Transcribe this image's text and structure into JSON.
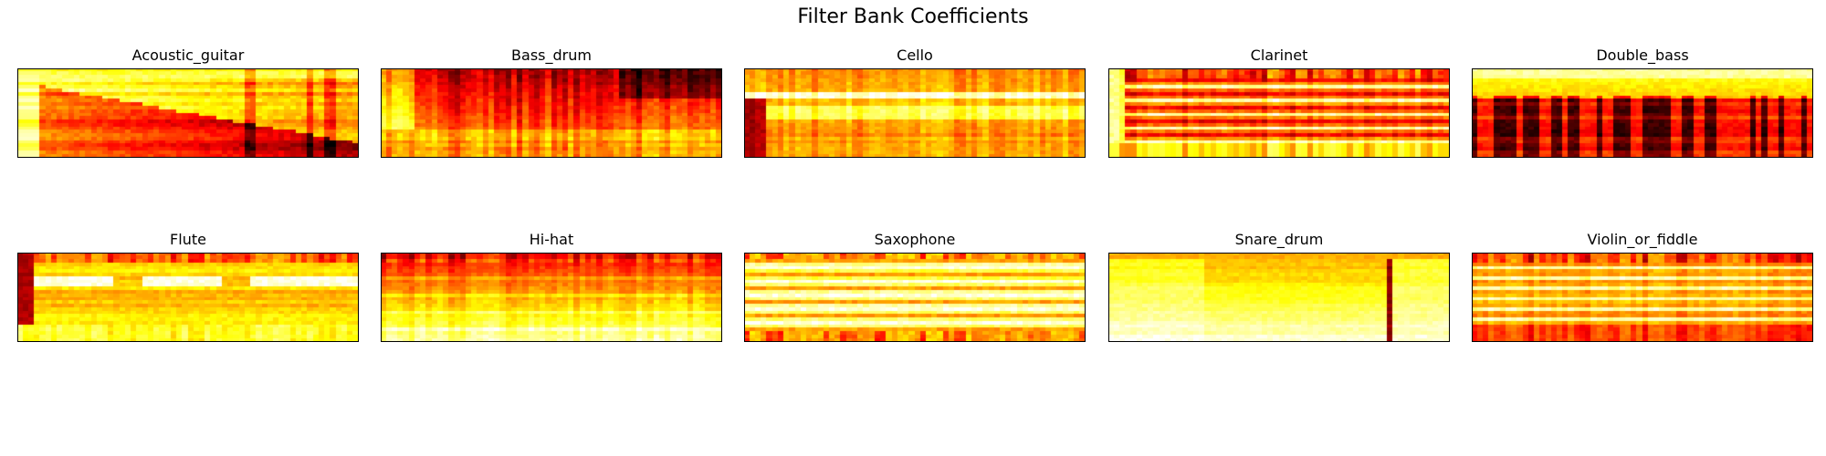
{
  "chart_data": {
    "type": "heatmap",
    "title": "Filter Bank Coefficients",
    "colormap": "hot",
    "xlabel": "",
    "ylabel": "",
    "axes_ticks": "none",
    "grid": false,
    "layout": {
      "rows": 2,
      "cols": 5
    },
    "panels": [
      {
        "title": "Acoustic_guitar",
        "pattern": "decay_wedge",
        "mean_intensity": 0.55
      },
      {
        "title": "Bass_drum",
        "pattern": "dark_top_warm_left",
        "mean_intensity": 0.4
      },
      {
        "title": "Cello",
        "pattern": "bright_band_upper",
        "mean_intensity": 0.55
      },
      {
        "title": "Clarinet",
        "pattern": "harmonic_stripes",
        "mean_intensity": 0.5
      },
      {
        "title": "Double_bass",
        "pattern": "bright_top_dark_columns",
        "mean_intensity": 0.45
      },
      {
        "title": "Flute",
        "pattern": "bright_stripes_gaps",
        "mean_intensity": 0.6
      },
      {
        "title": "Hi-hat",
        "pattern": "bright_bottom",
        "mean_intensity": 0.6
      },
      {
        "title": "Saxophone",
        "pattern": "bright_broad",
        "mean_intensity": 0.75
      },
      {
        "title": "Snare_drum",
        "pattern": "bright_blocks_dark_column",
        "mean_intensity": 0.7
      },
      {
        "title": "Violin_or_fiddle",
        "pattern": "mid_bright_stripes",
        "mean_intensity": 0.55
      }
    ]
  }
}
